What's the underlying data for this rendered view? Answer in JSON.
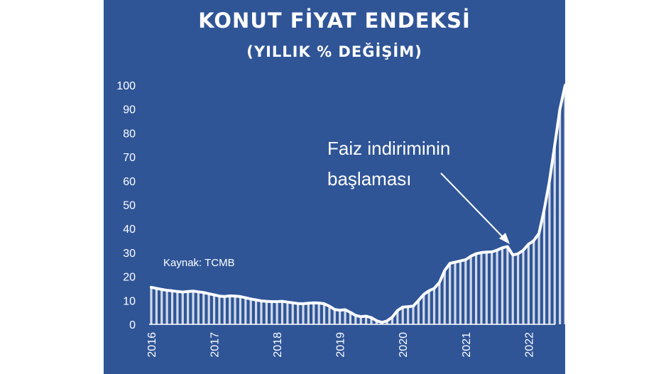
{
  "title": "KONUT FİYAT ENDEKSİ",
  "subtitle": "(YILLIK % DEĞİŞİM)",
  "source": "Kaynak: TCMB",
  "annotation": {
    "line1": "Faiz indiriminin",
    "line2": "başlaması",
    "points_to": "2021-07"
  },
  "colors": {
    "background": "#2f5597",
    "line": "#ffffff",
    "text": "#ffffff"
  },
  "chart_data": {
    "type": "area",
    "ylim": [
      0,
      100
    ],
    "yticks": [
      0,
      10,
      20,
      30,
      40,
      50,
      60,
      70,
      80,
      90,
      100
    ],
    "xticks": [
      "2016",
      "2017",
      "2018",
      "2019",
      "2020",
      "2021",
      "2022"
    ],
    "x_start": "2016-01",
    "frequency": "monthly",
    "values": [
      15.5,
      15.0,
      14.6,
      14.2,
      14.0,
      13.7,
      13.5,
      13.7,
      13.9,
      13.6,
      13.3,
      12.8,
      12.3,
      11.8,
      11.6,
      11.9,
      11.8,
      11.6,
      11.1,
      10.6,
      10.2,
      9.8,
      9.6,
      9.5,
      9.5,
      9.6,
      9.3,
      9.0,
      8.7,
      8.6,
      8.8,
      9.0,
      8.9,
      8.6,
      7.6,
      6.2,
      5.9,
      6.1,
      5.0,
      3.7,
      3.2,
      3.4,
      2.8,
      1.5,
      0.8,
      1.4,
      3.0,
      5.8,
      7.2,
      7.4,
      7.6,
      10.0,
      12.5,
      14.0,
      15.0,
      17.5,
      22.5,
      25.5,
      26.0,
      26.5,
      27.0,
      28.5,
      29.5,
      30.0,
      30.2,
      30.3,
      31.0,
      32.0,
      32.5,
      29.0,
      29.5,
      31.0,
      33.5,
      35.0,
      38.0,
      48.0,
      60.0,
      75.0,
      90.0,
      100.0
    ]
  }
}
